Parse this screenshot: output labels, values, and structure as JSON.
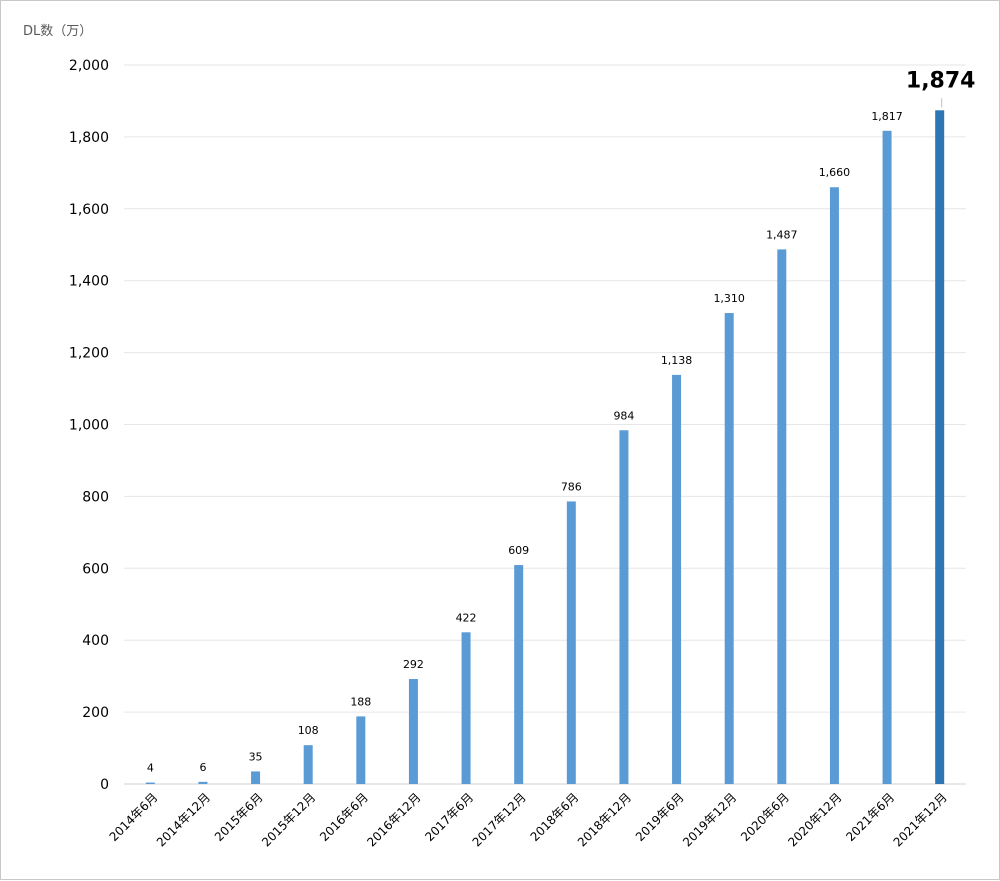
{
  "chart_data": {
    "type": "bar",
    "ylabel": "DL数（万）",
    "ylim": [
      0,
      2000
    ],
    "yticks": [
      "0",
      "200",
      "400",
      "600",
      "800",
      "1,000",
      "1,200",
      "1,400",
      "1,600",
      "1,800",
      "2,000"
    ],
    "ytick_values": [
      0,
      200,
      400,
      600,
      800,
      1000,
      1200,
      1400,
      1600,
      1800,
      2000
    ],
    "categories": [
      "2014年6月",
      "2014年12月",
      "2015年6月",
      "2015年12月",
      "2016年6月",
      "2016年12月",
      "2017年6月",
      "2017年12月",
      "2018年6月",
      "2018年12月",
      "2019年6月",
      "2019年12月",
      "2020年6月",
      "2020年12月",
      "2021年6月",
      "2021年12月"
    ],
    "values": [
      4,
      6,
      35,
      108,
      188,
      292,
      422,
      609,
      786,
      984,
      1138,
      1310,
      1487,
      1660,
      1817,
      1874
    ],
    "value_labels": [
      "4",
      "6",
      "35",
      "108",
      "188",
      "292",
      "422",
      "609",
      "786",
      "984",
      "1,138",
      "1,310",
      "1,487",
      "1,660",
      "1,817",
      "1,874"
    ],
    "highlight_index": 15,
    "grid": true,
    "legend": "none",
    "colors": {
      "bar": "#5b9bd5",
      "highlight": "#2e75b6",
      "grid": "#e6e6e6"
    }
  }
}
